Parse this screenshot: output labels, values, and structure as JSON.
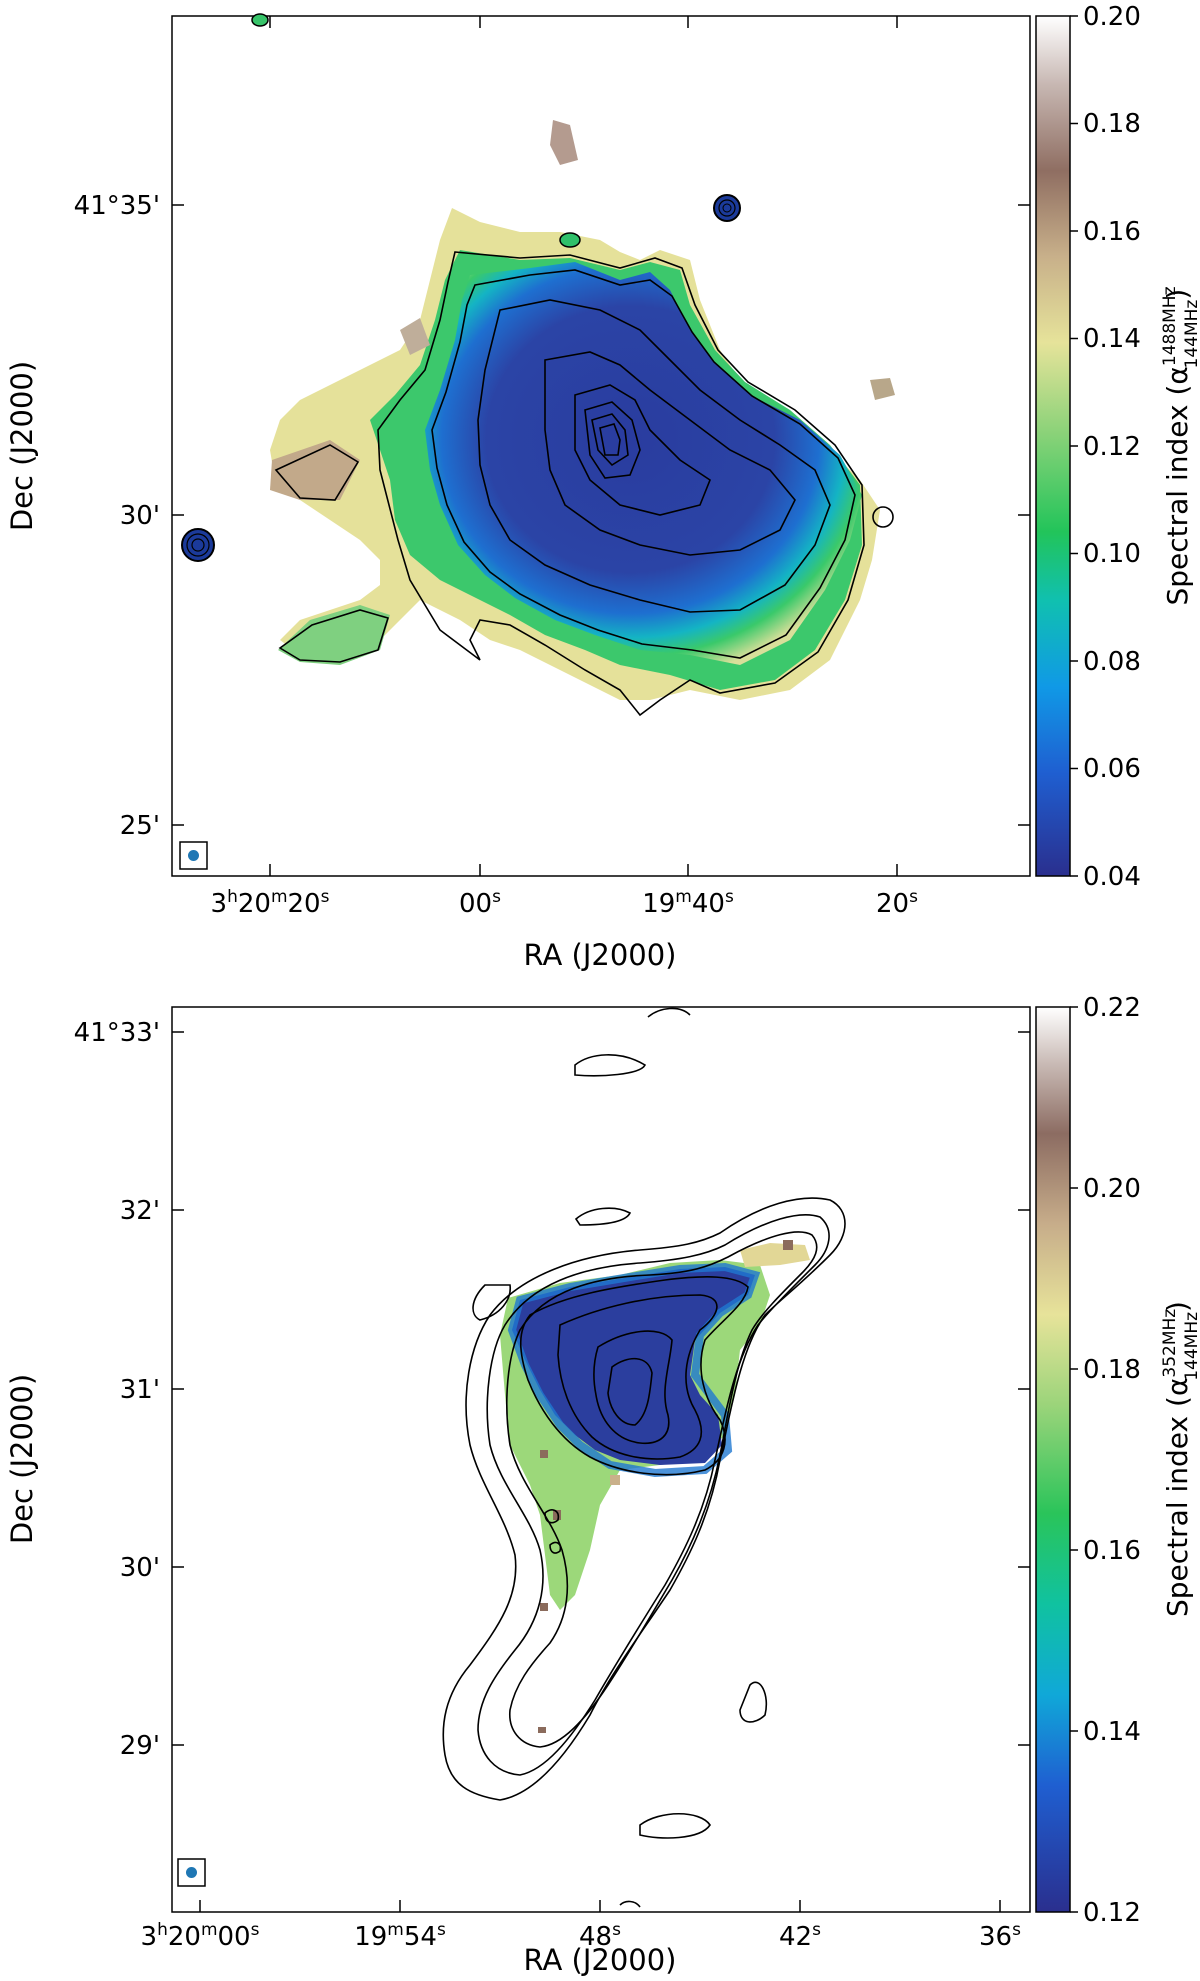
{
  "figure": {
    "panels": [
      {
        "xlabel": "RA (J2000)",
        "ylabel": "Dec (J2000)",
        "colorbar_label_base": "Spectral index (α",
        "colorbar_label_sup": "1488MHz",
        "colorbar_label_sub": "144MHz",
        "colorbar_ticks": [
          "0.20",
          "0.18",
          "0.16",
          "0.14",
          "0.12",
          "0.10",
          "0.08",
          "0.06",
          "0.04"
        ],
        "colorbar_range": [
          0.04,
          0.2
        ],
        "dec_ticks": [
          "41°35'",
          "30'",
          "25'"
        ],
        "ra_ticks": [
          {
            "main": "3",
            "h": "h",
            "min": "20",
            "m": "m",
            "sec": "20",
            "s": "s"
          },
          {
            "main": "",
            "h": "",
            "min": "",
            "m": "",
            "sec": "00",
            "s": "s"
          },
          {
            "main": "",
            "h": "",
            "min": "19",
            "m": "m",
            "sec": "40",
            "s": "s"
          },
          {
            "main": "",
            "h": "",
            "min": "",
            "m": "",
            "sec": "20",
            "s": "s"
          }
        ],
        "colormap": "terrain"
      },
      {
        "xlabel": "RA (J2000)",
        "ylabel": "Dec (J2000)",
        "colorbar_label_base": "Spectral index (α",
        "colorbar_label_sup": "352MHz",
        "colorbar_label_sub": "144MHz",
        "colorbar_ticks": [
          "0.22",
          "0.20",
          "0.18",
          "0.16",
          "0.14",
          "0.12"
        ],
        "colorbar_range": [
          0.12,
          0.22
        ],
        "dec_ticks": [
          "41°33'",
          "32'",
          "31'",
          "30'",
          "29'"
        ],
        "ra_ticks": [
          {
            "main": "3",
            "h": "h",
            "min": "20",
            "m": "m",
            "sec": "00",
            "s": "s"
          },
          {
            "main": "",
            "h": "",
            "min": "19",
            "m": "m",
            "sec": "54",
            "s": "s"
          },
          {
            "main": "",
            "h": "",
            "min": "",
            "m": "",
            "sec": "48",
            "s": "s"
          },
          {
            "main": "",
            "h": "",
            "min": "",
            "m": "",
            "sec": "42",
            "s": "s"
          },
          {
            "main": "",
            "h": "",
            "min": "",
            "m": "",
            "sec": "36",
            "s": "s"
          }
        ],
        "colormap": "terrain"
      }
    ],
    "colors": {
      "deep_blue": "#2b3a9e",
      "blue": "#1f78d1",
      "cyan": "#14b5c8",
      "green": "#28c76a",
      "light_green": "#9bdc7a",
      "yellow": "#e8e59a",
      "tan": "#c8b48a",
      "brown": "#8a6a5a",
      "beam_blue": "#1f77b4"
    }
  }
}
